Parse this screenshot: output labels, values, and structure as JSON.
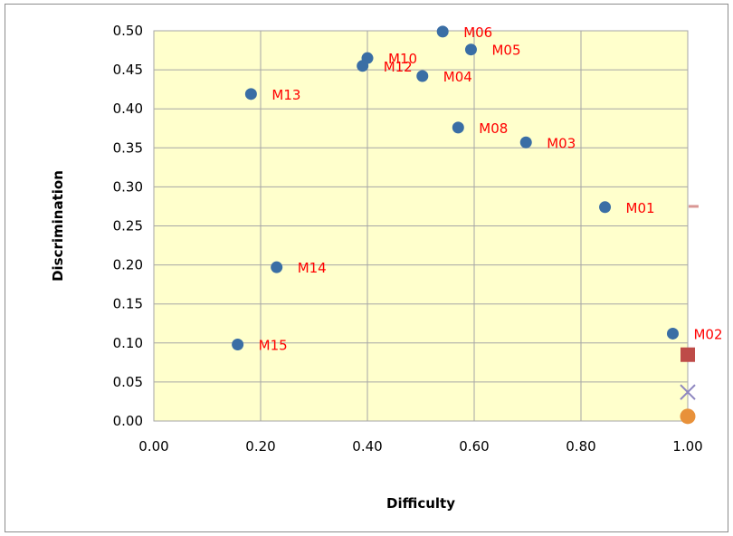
{
  "chart_data": {
    "type": "scatter",
    "title": "",
    "xlabel": "Difficulty",
    "ylabel": "Discrimination",
    "xlim": [
      0,
      1
    ],
    "ylim": [
      0,
      0.5
    ],
    "xticks": [
      "0.00",
      "0.20",
      "0.40",
      "0.60",
      "0.80",
      "1.00"
    ],
    "yticks": [
      "0.00",
      "0.05",
      "0.10",
      "0.15",
      "0.20",
      "0.25",
      "0.30",
      "0.35",
      "0.40",
      "0.45",
      "0.50"
    ],
    "grid": true,
    "plot_background": "#ffffcc",
    "gridline_color": "#a6a6a6",
    "label_color": "#ff0000",
    "series": [
      {
        "marker": "circle",
        "color": "#3a6ea5",
        "points": [
          {
            "label": "M01",
            "x": 0.845,
            "y": 0.274
          },
          {
            "label": "M02",
            "x": 0.972,
            "y": 0.112
          },
          {
            "label": "M03",
            "x": 0.697,
            "y": 0.357
          },
          {
            "label": "M04",
            "x": 0.503,
            "y": 0.442
          },
          {
            "label": "M05",
            "x": 0.594,
            "y": 0.476
          },
          {
            "label": "M06",
            "x": 0.541,
            "y": 0.499
          },
          {
            "label": "M08",
            "x": 0.57,
            "y": 0.376
          },
          {
            "label": "M10",
            "x": 0.4,
            "y": 0.465
          },
          {
            "label": "M12",
            "x": 0.391,
            "y": 0.455
          },
          {
            "label": "M13",
            "x": 0.182,
            "y": 0.419
          },
          {
            "label": "M14",
            "x": 0.23,
            "y": 0.197
          },
          {
            "label": "M15",
            "x": 0.157,
            "y": 0.098
          }
        ]
      },
      {
        "marker": "dash",
        "color": "#d99694",
        "points": [
          {
            "x": 1.005,
            "y": 0.275
          }
        ]
      },
      {
        "marker": "square",
        "color": "#be4b48",
        "points": [
          {
            "x": 1.0,
            "y": 0.085
          }
        ]
      },
      {
        "marker": "x",
        "color": "#8e87c0",
        "points": [
          {
            "x": 1.0,
            "y": 0.037
          }
        ]
      },
      {
        "marker": "circle-large",
        "color": "#e8913a",
        "points": [
          {
            "x": 1.0,
            "y": 0.006
          }
        ]
      }
    ]
  }
}
